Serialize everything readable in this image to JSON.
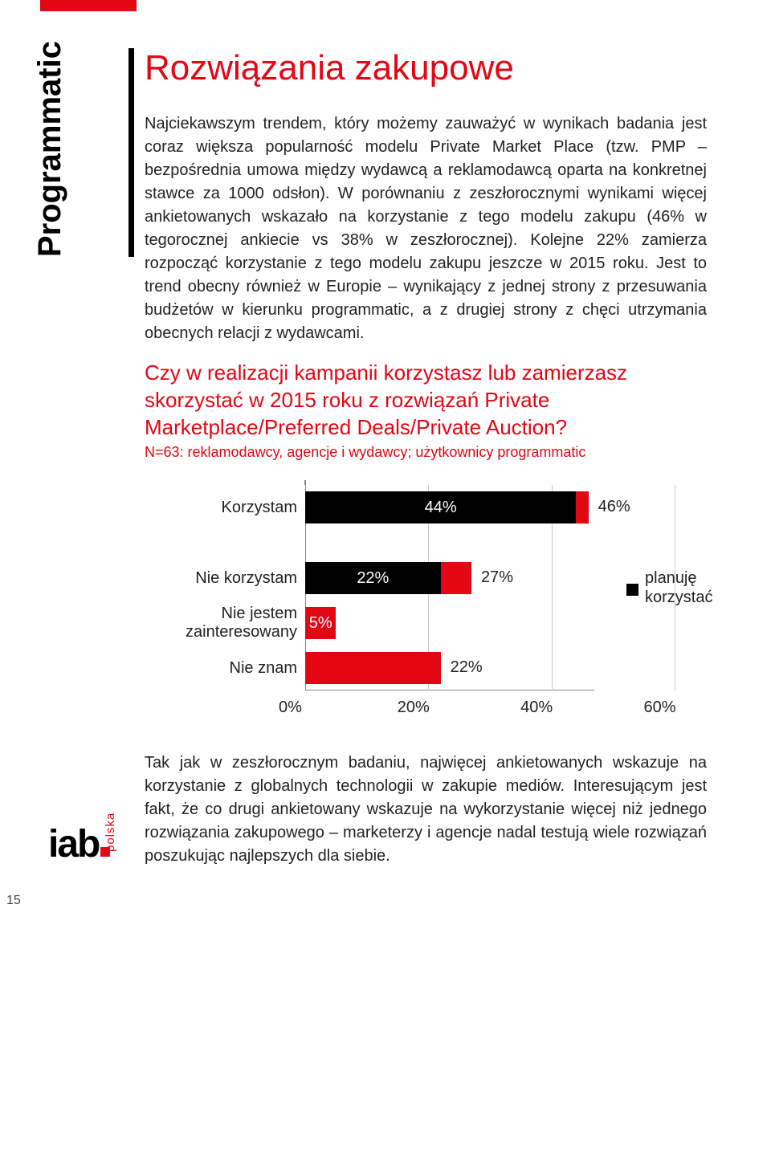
{
  "page_number": "15",
  "top_bar_color": "#e30613",
  "vertical_label": "Programmatic",
  "title": "Rozwiązania zakupowe",
  "paragraph1": "Najciekawszym trendem, który możemy zauważyć w wynikach badania jest coraz większa popularność modelu Private Market Place (tzw. PMP – bezpośrednia umowa między wydawcą a reklamodawcą oparta na konkretnej stawce za 1000 odsłon). W porównaniu z zeszłorocznymi wynikami więcej ankietowanych wskazało na korzystanie z tego modelu zakupu (46% w tegorocznej ankiecie vs 38% w zeszłorocznej). Kolejne 22% zamierza rozpocząć korzystanie z tego modelu zakupu jeszcze w 2015 roku. Jest to trend obecny również w Europie – wynikający z jednej strony z przesuwania budżetów w kierunku programmatic, a z drugiej strony z chęci utrzymania obecnych relacji z wydawcami.",
  "question": "Czy w realizacji kampanii korzystasz lub zamierzasz skorzystać w 2015 roku z rozwiązań Private Marketplace/Preferred Deals/Private Auction?",
  "sample": "N=63: reklamodawcy, agencje i wydawcy; użytkownicy programmatic",
  "chart": {
    "type": "stacked-horizontal-bar",
    "xmax": 60,
    "ticks": [
      "0%",
      "20%",
      "40%",
      "60%"
    ],
    "tick_values": [
      0,
      20,
      40,
      60
    ],
    "categories": [
      {
        "label": "Korzystam",
        "seg1": 44,
        "seg1_label": "44%",
        "seg2_to": 46,
        "out_label": "46%"
      },
      {
        "label": "Nie korzystam",
        "seg1": 22,
        "seg1_label": "22%",
        "seg2_to": 27,
        "out_label": "27%"
      },
      {
        "label": "Nie jestem zainteresowany",
        "seg1": 5,
        "seg1_label": "5%",
        "seg2_to": null,
        "out_label": ""
      },
      {
        "label": "Nie znam",
        "seg1": 22,
        "seg1_label": "",
        "seg2_to": null,
        "out_label": "22%"
      }
    ],
    "seg1_color": "#000000",
    "seg2_color": "#e30613",
    "single_color": "#e30613",
    "legend_label": "planuję korzystać",
    "grid_color": "#cccccc"
  },
  "paragraph2": "Tak jak w zeszłorocznym badaniu, najwięcej ankietowanych wskazuje na korzystanie z globalnych technologii w zakupie mediów. Interesującym jest fakt, że co drugi ankietowany wskazuje na wykorzystanie więcej niż jednego rozwiązania zakupowego – marketerzy i agencje nadal testują wiele rozwiązań poszukując najlepszych dla siebie.",
  "logo": {
    "text": "iab",
    "sub": "polska"
  }
}
